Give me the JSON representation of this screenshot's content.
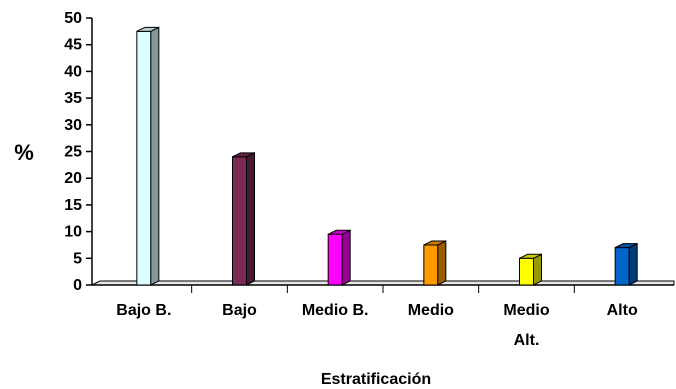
{
  "chart_data": {
    "type": "bar",
    "style": "3d",
    "categories": [
      "Bajo B.",
      "Bajo",
      "Medio B.",
      "Medio",
      "Medio Alt.",
      "Alto"
    ],
    "values": [
      47.5,
      24,
      9.5,
      7.5,
      5,
      7
    ],
    "colors": [
      "#ddffff",
      "#7a2a55",
      "#ff00ff",
      "#ff9900",
      "#ffff00",
      "#0066cc"
    ],
    "ylim": [
      0,
      50
    ],
    "yticks": [
      0,
      5,
      10,
      15,
      20,
      25,
      30,
      35,
      40,
      45,
      50
    ],
    "ylabel": "%",
    "xlabel": "Estratificación",
    "grid": false,
    "legend": false
  }
}
